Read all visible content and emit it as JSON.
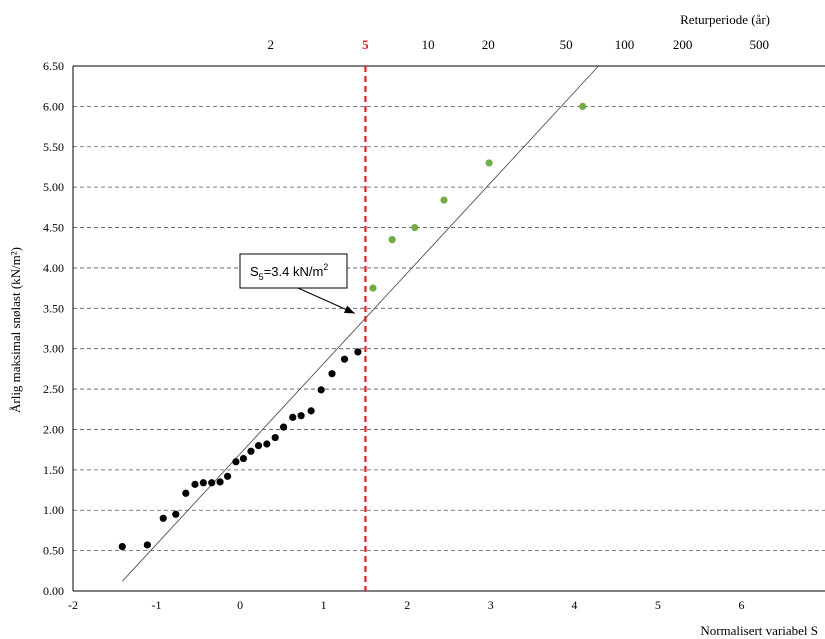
{
  "chart_data": {
    "type": "scatter",
    "xlabel": "Normalisert variabel S",
    "ylabel": "Årlig maksimal snølast (kN/m²)",
    "top_axis_label": "Returperiode (år)",
    "xlim": [
      -2,
      7
    ],
    "ylim": [
      0,
      6.5
    ],
    "x_ticks": [
      "-2",
      "-1",
      "0",
      "1",
      "2",
      "3",
      "4",
      "5",
      "6"
    ],
    "y_ticks": [
      "0.00",
      "0.50",
      "1.00",
      "1.50",
      "2.00",
      "2.50",
      "3.00",
      "3.50",
      "4.00",
      "4.50",
      "5.00",
      "5.50",
      "6.00",
      "6.50"
    ],
    "return_period_ticks": [
      {
        "label": "2",
        "s": 0.3665
      },
      {
        "label": "5",
        "s": 1.4999
      },
      {
        "label": "10",
        "s": 2.2504
      },
      {
        "label": "20",
        "s": 2.9702
      },
      {
        "label": "50",
        "s": 3.9019
      },
      {
        "label": "100",
        "s": 4.6001
      },
      {
        "label": "200",
        "s": 5.2958
      },
      {
        "label": "500",
        "s": 6.2136
      }
    ],
    "highlight_return_period": "5",
    "colors": {
      "observed": "#000000",
      "upper": "#70ad47",
      "design_line": "#e31e24",
      "fit_line": "#555555",
      "grid": "#555555"
    },
    "series": [
      {
        "points": [
          [
            -1.41,
            0.55
          ],
          [
            -1.11,
            0.57
          ],
          [
            -0.92,
            0.9
          ],
          [
            -0.77,
            0.95
          ],
          [
            -0.65,
            1.21
          ],
          [
            -0.54,
            1.32
          ],
          [
            -0.44,
            1.34
          ],
          [
            -0.34,
            1.34
          ],
          [
            -0.24,
            1.35
          ],
          [
            -0.15,
            1.42
          ],
          [
            -0.05,
            1.6
          ],
          [
            0.04,
            1.64
          ],
          [
            0.13,
            1.73
          ],
          [
            0.22,
            1.8
          ],
          [
            0.32,
            1.82
          ],
          [
            0.42,
            1.9
          ],
          [
            0.52,
            2.03
          ],
          [
            0.63,
            2.15
          ],
          [
            0.73,
            2.17
          ],
          [
            0.85,
            2.23
          ],
          [
            0.97,
            2.49
          ],
          [
            1.1,
            2.69
          ],
          [
            1.25,
            2.87
          ],
          [
            1.41,
            2.96
          ]
        ]
      },
      {
        "points": [
          [
            1.59,
            3.75
          ],
          [
            1.82,
            4.35
          ],
          [
            2.09,
            4.5
          ],
          [
            2.44,
            4.84
          ],
          [
            2.98,
            5.3
          ],
          [
            4.1,
            6.0
          ]
        ]
      }
    ],
    "fit_line": [
      [
        -1.41,
        0.12
      ],
      [
        4.29,
        6.5
      ]
    ],
    "design_line_s": 1.5,
    "annotation": {
      "label_main": "S",
      "label_sub": "5",
      "label_rest": "=3.4 kN/m",
      "label_sup": "2",
      "target": [
        1.42,
        3.4
      ]
    }
  }
}
